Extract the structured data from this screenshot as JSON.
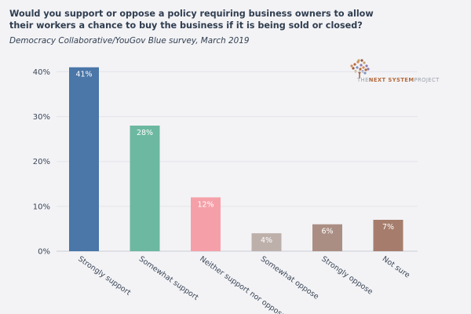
{
  "chart_data": {
    "type": "bar",
    "title": "Would you support or oppose a policy requiring business owners to allow their workers a chance to buy the business if it is being sold or closed?",
    "subtitle": "Democracy Collaborative/YouGov Blue survey, March 2019",
    "categories": [
      "Strongly support",
      "Somewhat support",
      "Neither support nor oppose",
      "Somewhat oppose",
      "Strongly oppose",
      "Not sure"
    ],
    "values": [
      41,
      28,
      12,
      4,
      6,
      7
    ],
    "data_labels": [
      "41%",
      "28%",
      "12%",
      "4%",
      "6%",
      "7%"
    ],
    "colors": [
      "#4a76a8",
      "#6cb8a0",
      "#f5a0a8",
      "#bdb0aa",
      "#ab8e83",
      "#a67d6c"
    ],
    "ylim": [
      0,
      42
    ],
    "yticks": [
      0,
      10,
      20,
      30,
      40
    ],
    "ytick_labels": [
      "0%",
      "10%",
      "20%",
      "30%",
      "40%"
    ],
    "xlabel": "",
    "ylabel": "",
    "grid": true
  },
  "logo": {
    "name": "tree-logo-icon",
    "text_strong": "NEXT SYSTEM",
    "text_prefix": "THE",
    "text_suffix": "PROJECT",
    "accent_color": "#b46a3c"
  }
}
